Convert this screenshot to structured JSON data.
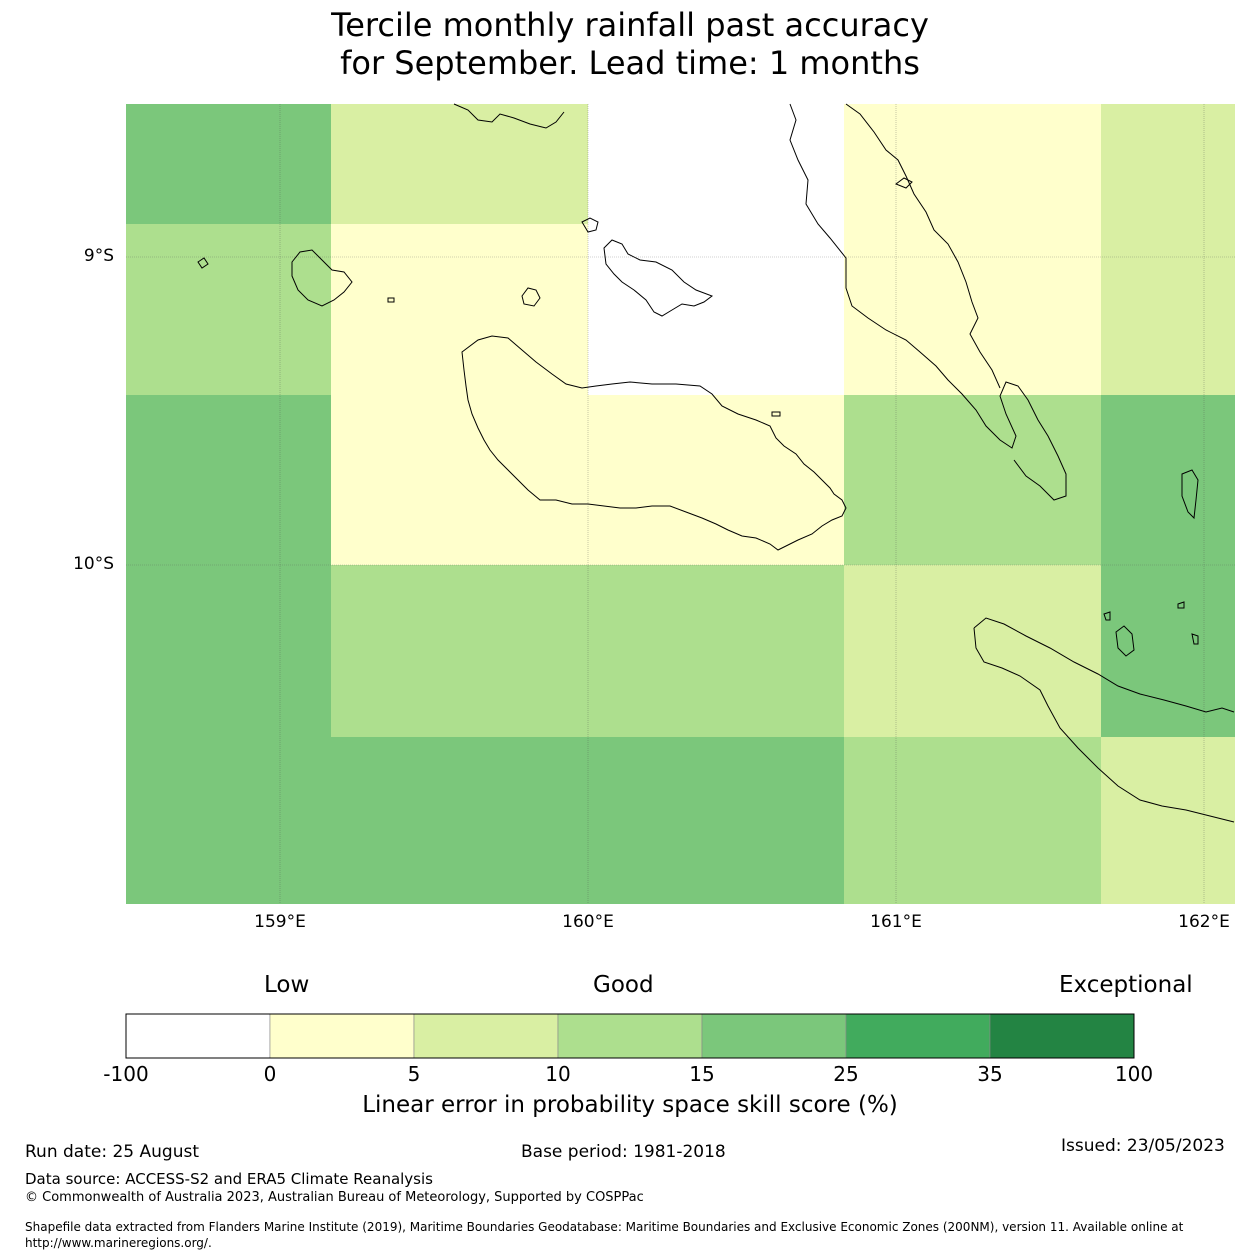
{
  "title": {
    "line1": "Tercile monthly rainfall past accuracy",
    "line2": "for September. Lead time: 1 months"
  },
  "axes": {
    "lat_labels": [
      "9°S",
      "10°S"
    ],
    "lon_labels": [
      "159°E",
      "160°E",
      "161°E",
      "162°E"
    ]
  },
  "grid": {
    "lon_range": [
      158.5,
      162.1
    ],
    "lat_range": [
      -8.5,
      -11.1
    ],
    "cell_colors": [
      [
        "#7bc77b",
        "#d9efa3",
        "#ffffff",
        "#ffffcc",
        "#d9efa3"
      ],
      [
        "#addf8e",
        "#ffffcc",
        "#ffffff",
        "#ffffcc",
        "#d9efa3"
      ],
      [
        "#7bc77b",
        "#ffffcc",
        "#ffffcc",
        "#addf8e",
        "#7bc77b"
      ],
      [
        "#7bc77b",
        "#addf8e",
        "#addf8e",
        "#d9efa3",
        "#7bc77b"
      ],
      [
        "#7bc77b",
        "#7bc77b",
        "#7bc77b",
        "#addf8e",
        "#d9efa3"
      ]
    ]
  },
  "colorbar": {
    "words": [
      "Low",
      "Good",
      "Exceptional"
    ],
    "ticks": [
      "-100",
      "0",
      "5",
      "10",
      "15",
      "25",
      "35",
      "100"
    ],
    "colors": [
      "#ffffff",
      "#ffffcc",
      "#d9efa3",
      "#addf8e",
      "#7bc77b",
      "#41ab5d",
      "#238443"
    ],
    "label": "Linear error in probability space skill score (%)"
  },
  "footer": {
    "run_date": "Run date: 25 August",
    "base_period": "Base period: 1981-2018",
    "issued": "Issued: 23/05/2023",
    "data_source": "Data source: ACCESS-S2 and ERA5 Climate Reanalysis",
    "copyright": "© Commonwealth of Australia 2023, Australian Bureau of Meteorology, Supported by COSPPac",
    "shapefile_line1": "Shapefile data extracted from Flanders Marine Institute (2019), Maritime Boundaries Geodatabase: Maritime Boundaries and Exclusive Economic Zones (200NM), version 11. Available online at",
    "shapefile_line2": "http://www.marineregions.org/."
  }
}
